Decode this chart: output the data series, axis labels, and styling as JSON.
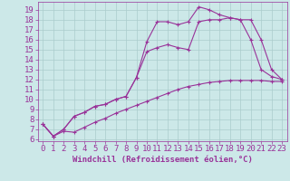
{
  "xlabel": "Windchill (Refroidissement éolien,°C)",
  "bg_color": "#cce8e8",
  "line_color": "#993399",
  "grid_color": "#aacccc",
  "xlim": [
    -0.5,
    23.5
  ],
  "ylim": [
    5.8,
    19.8
  ],
  "xticks": [
    0,
    1,
    2,
    3,
    4,
    5,
    6,
    7,
    8,
    9,
    10,
    11,
    12,
    13,
    14,
    15,
    16,
    17,
    18,
    19,
    20,
    21,
    22,
    23
  ],
  "yticks": [
    6,
    7,
    8,
    9,
    10,
    11,
    12,
    13,
    14,
    15,
    16,
    17,
    18,
    19
  ],
  "line1_x": [
    0,
    1,
    2,
    3,
    4,
    5,
    6,
    7,
    8,
    9,
    10,
    11,
    12,
    13,
    14,
    15,
    16,
    17,
    18,
    19,
    20,
    21,
    22,
    23
  ],
  "line1_y": [
    7.5,
    6.3,
    6.8,
    6.7,
    7.2,
    7.7,
    8.1,
    8.6,
    9.0,
    9.4,
    9.8,
    10.2,
    10.6,
    11.0,
    11.3,
    11.5,
    11.7,
    11.8,
    11.9,
    11.9,
    11.9,
    11.9,
    11.8,
    11.8
  ],
  "line2_x": [
    0,
    1,
    2,
    3,
    4,
    5,
    6,
    7,
    8,
    9,
    10,
    11,
    12,
    13,
    14,
    15,
    16,
    17,
    18,
    19,
    20,
    21,
    22,
    23
  ],
  "line2_y": [
    7.5,
    6.3,
    7.0,
    8.3,
    8.7,
    9.3,
    9.5,
    10.0,
    10.3,
    12.2,
    14.8,
    15.2,
    15.5,
    15.2,
    15.0,
    17.8,
    18.0,
    18.0,
    18.2,
    18.0,
    16.0,
    13.0,
    12.3,
    12.0
  ],
  "line3_x": [
    0,
    1,
    2,
    3,
    4,
    5,
    6,
    7,
    8,
    9,
    10,
    11,
    12,
    13,
    14,
    15,
    16,
    17,
    18,
    19,
    20,
    21,
    22,
    23
  ],
  "line3_y": [
    7.5,
    6.3,
    7.0,
    8.3,
    8.7,
    9.3,
    9.5,
    10.0,
    10.3,
    12.2,
    15.8,
    17.8,
    17.8,
    17.5,
    17.8,
    19.3,
    19.0,
    18.5,
    18.2,
    18.0,
    18.0,
    16.0,
    13.0,
    12.0
  ],
  "marker": "+",
  "marker_size": 3,
  "line_width": 0.8,
  "font_size": 6.5
}
